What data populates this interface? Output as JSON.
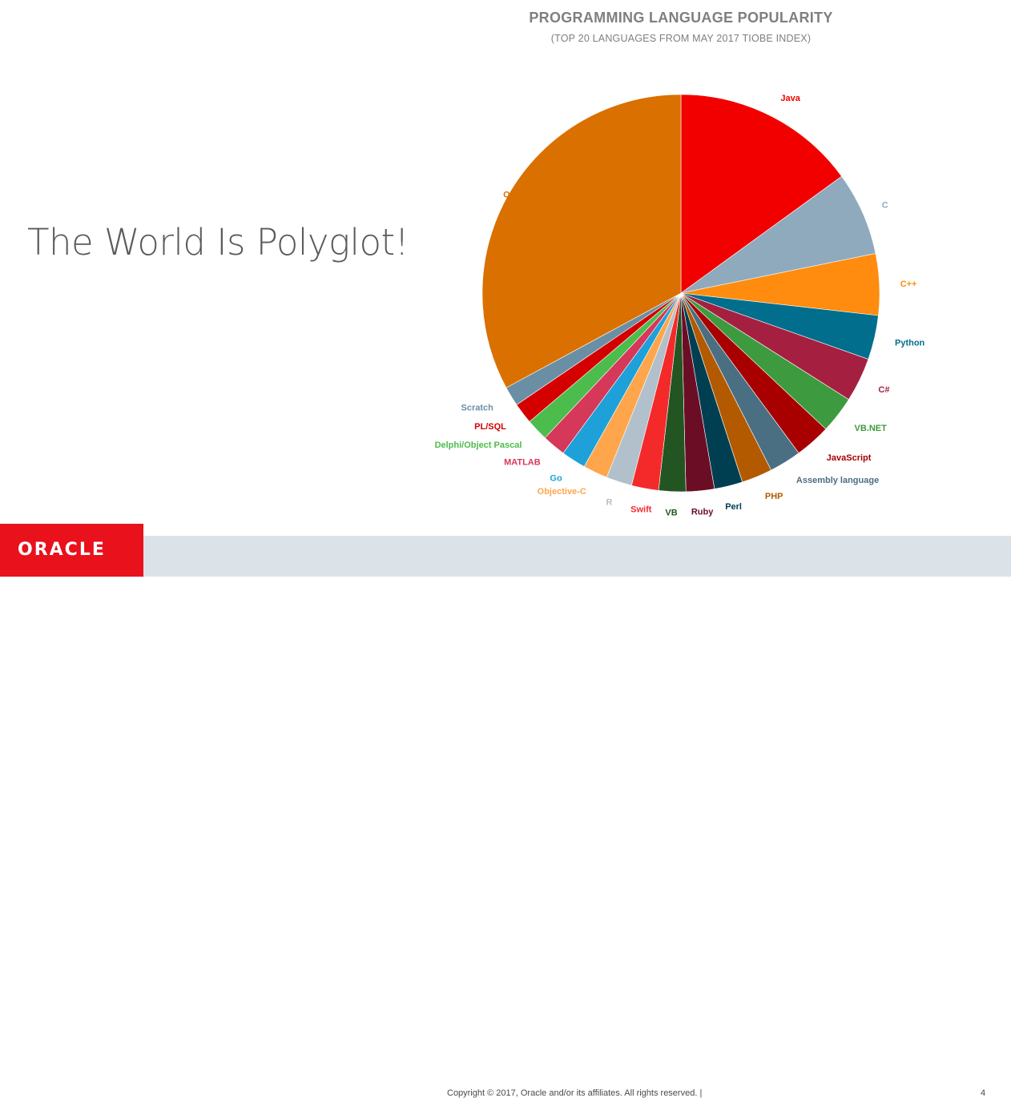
{
  "slide": {
    "heading": "The World Is Polyglot!",
    "footer": {
      "logo": "ORACLE",
      "copyright": "Copyright © 2017, Oracle and/or its affiliates. All rights reserved.  |",
      "page_number": "4"
    }
  },
  "chart_data": {
    "type": "pie",
    "title": "PROGRAMMING LANGUAGE POPULARITY",
    "subtitle": "(TOP 20 LANGUAGES FROM MAY 2017 TIOBE INDEX)",
    "start": "12 o'clock, clockwise",
    "slices": [
      {
        "label": "Java",
        "value": 15.0,
        "color": "#f20000"
      },
      {
        "label": "C",
        "value": 6.8,
        "color": "#8faabc"
      },
      {
        "label": "C++",
        "value": 5.0,
        "color": "#ff8c0f"
      },
      {
        "label": "Python",
        "value": 3.6,
        "color": "#006e8c"
      },
      {
        "label": "C#",
        "value": 3.6,
        "color": "#a52040"
      },
      {
        "label": "VB.NET",
        "value": 3.0,
        "color": "#3e9a3e"
      },
      {
        "label": "JavaScript",
        "value": 2.9,
        "color": "#a80000"
      },
      {
        "label": "Assembly language",
        "value": 2.6,
        "color": "#4a6f82"
      },
      {
        "label": "PHP",
        "value": 2.5,
        "color": "#b35a00"
      },
      {
        "label": "Perl",
        "value": 2.3,
        "color": "#003e52"
      },
      {
        "label": "Ruby",
        "value": 2.3,
        "color": "#6b0e25"
      },
      {
        "label": "VB",
        "value": 2.2,
        "color": "#235522"
      },
      {
        "label": "Swift",
        "value": 2.2,
        "color": "#f42a2a"
      },
      {
        "label": "R",
        "value": 2.1,
        "color": "#b2c0cb"
      },
      {
        "label": "Objective-C",
        "value": 2.0,
        "color": "#ffa64d"
      },
      {
        "label": "Go",
        "value": 2.0,
        "color": "#1da1d8"
      },
      {
        "label": "MATLAB",
        "value": 1.9,
        "color": "#d6385a"
      },
      {
        "label": "Delphi/Object Pascal",
        "value": 1.8,
        "color": "#4cbd4c"
      },
      {
        "label": "PL/SQL",
        "value": 1.7,
        "color": "#d40000"
      },
      {
        "label": "Scratch",
        "value": 1.6,
        "color": "#6a8fa5"
      },
      {
        "label": "Others",
        "value": 32.9,
        "color": "#d97000"
      }
    ]
  }
}
